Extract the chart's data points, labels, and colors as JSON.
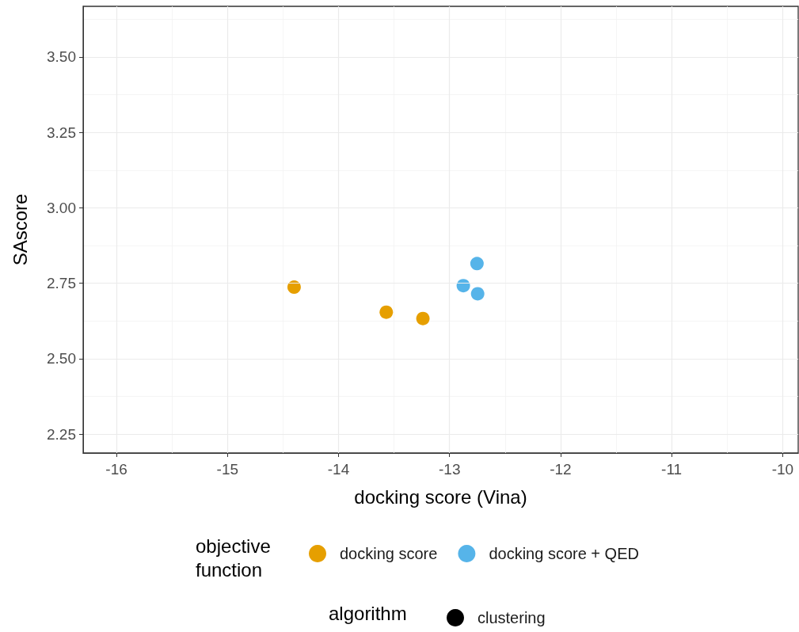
{
  "chart_data": {
    "type": "scatter",
    "xlabel": "docking score (Vina)",
    "ylabel": "SAscore",
    "legend_title": "objective function",
    "annotations": [
      "algorithm"
    ],
    "xlim": [
      -16.3,
      -9.86
    ],
    "xticks": [
      -16,
      -15,
      -14,
      -13,
      -12,
      -11,
      -10
    ],
    "ylim": [
      2.187,
      3.668
    ],
    "yticks": [
      2.25,
      {
        "value": 2.5,
        "label": "2.50"
      },
      2.75,
      {
        "value": 3,
        "label": "3.00"
      },
      3.25,
      {
        "value": 3.5,
        "label": "3.50"
      }
    ],
    "grid": true,
    "legend": "bottom",
    "marker": "circle",
    "series": [
      {
        "name": "docking score",
        "color": "#e69f00",
        "x": [
          -14.4,
          -13.57,
          -13.24
        ],
        "values": [
          2.737,
          2.654,
          2.633
        ]
      },
      {
        "name": "docking score + QED",
        "color": "#56b4e9",
        "x": [
          -12.753,
          -12.876,
          -12.747
        ],
        "values": [
          2.815,
          2.742,
          2.715
        ]
      },
      {
        "name": "clustering",
        "color": "#000000"
      }
    ]
  }
}
